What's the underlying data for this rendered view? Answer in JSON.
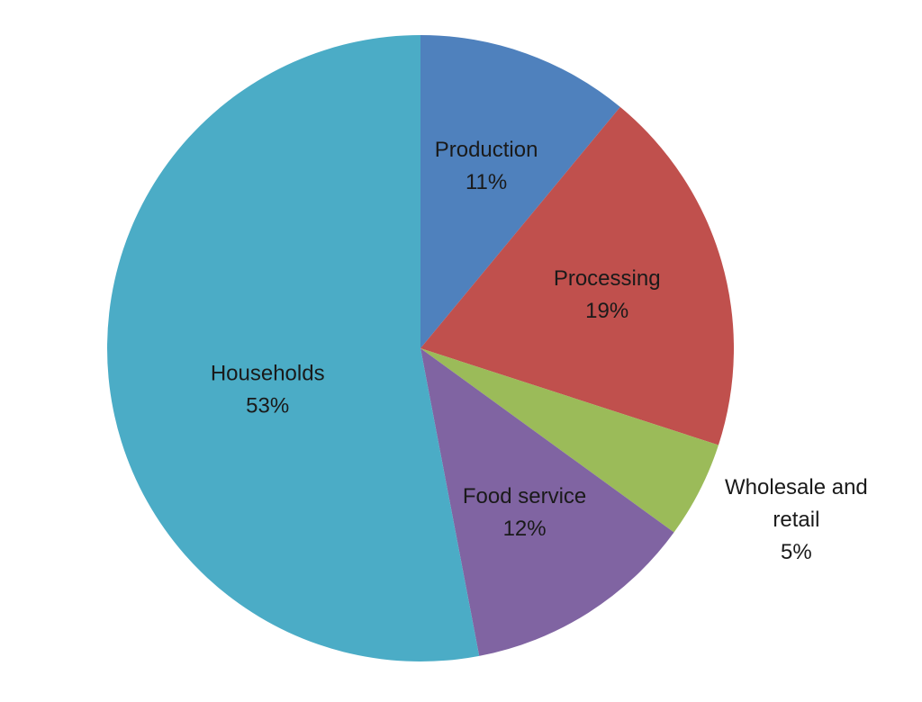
{
  "chart_data": {
    "type": "pie",
    "title": "",
    "start_angle_deg": 0,
    "direction": "clockwise",
    "legend": "none",
    "slices": [
      {
        "label_lines": [
          "Production"
        ],
        "value": 11,
        "value_label": "11%",
        "color": "#4F81BD"
      },
      {
        "label_lines": [
          "Processing"
        ],
        "value": 19,
        "value_label": "19%",
        "color": "#C0504D"
      },
      {
        "label_lines": [
          "Wholesale and",
          "retail"
        ],
        "value": 5,
        "value_label": "5%",
        "color": "#9BBB59",
        "label_outside": true
      },
      {
        "label_lines": [
          "Food service"
        ],
        "value": 12,
        "value_label": "12%",
        "color": "#8064A2"
      },
      {
        "label_lines": [
          "Households"
        ],
        "value": 53,
        "value_label": "53%",
        "color": "#4BACC6"
      }
    ]
  }
}
